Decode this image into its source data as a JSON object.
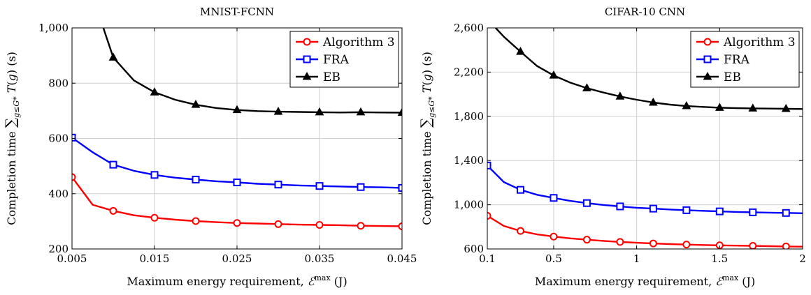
{
  "chart_data": [
    {
      "type": "line",
      "title": "MNIST-FCNN",
      "xlabel": "Maximum energy requirement, ℰ^max (J)",
      "ylabel": "Completion time ∑_{g≤G*} T(g) (s)",
      "xlim": [
        0.005,
        0.045
      ],
      "ylim": [
        200,
        1000
      ],
      "xticks": [
        0.005,
        0.015,
        0.025,
        0.035,
        0.045
      ],
      "xtick_labels": [
        "0.005",
        "0.015",
        "0.025",
        "0.035",
        "0.045"
      ],
      "yticks": [
        200,
        400,
        600,
        800,
        1000
      ],
      "ytick_labels": [
        "200",
        "400",
        "600",
        "800",
        "1,000"
      ],
      "grid": true,
      "legend_position": "top-right",
      "series": [
        {
          "name": "Algorithm 3",
          "color": "#ff0000",
          "marker": "circle",
          "x": [
            0.005,
            0.0075,
            0.01,
            0.0125,
            0.015,
            0.0175,
            0.02,
            0.0225,
            0.025,
            0.0275,
            0.03,
            0.0325,
            0.035,
            0.0375,
            0.04,
            0.0425,
            0.045
          ],
          "y": [
            460,
            360,
            338,
            322,
            313,
            306,
            301,
            297,
            294,
            292,
            290,
            288,
            287,
            286,
            284,
            283,
            282
          ],
          "marker_x": [
            0.005,
            0.01,
            0.015,
            0.02,
            0.025,
            0.03,
            0.035,
            0.04,
            0.045
          ]
        },
        {
          "name": "FRA",
          "color": "#0000ff",
          "marker": "square",
          "x": [
            0.005,
            0.0075,
            0.01,
            0.0125,
            0.015,
            0.0175,
            0.02,
            0.0225,
            0.025,
            0.0275,
            0.03,
            0.0325,
            0.035,
            0.0375,
            0.04,
            0.0425,
            0.045
          ],
          "y": [
            603,
            550,
            505,
            483,
            468,
            458,
            451,
            445,
            441,
            436,
            433,
            430,
            428,
            426,
            424,
            423,
            421
          ],
          "marker_x": [
            0.005,
            0.01,
            0.015,
            0.02,
            0.025,
            0.03,
            0.035,
            0.04,
            0.045
          ]
        },
        {
          "name": "EB",
          "color": "#000000",
          "marker": "triangle",
          "x": [
            0.0088,
            0.01,
            0.0125,
            0.015,
            0.0175,
            0.02,
            0.0225,
            0.025,
            0.0275,
            0.03,
            0.0325,
            0.035,
            0.0375,
            0.04,
            0.0425,
            0.045
          ],
          "y": [
            1000,
            893,
            810,
            767,
            740,
            722,
            710,
            703,
            699,
            697,
            696,
            695,
            694,
            695,
            694,
            693
          ],
          "marker_x": [
            0.01,
            0.015,
            0.02,
            0.025,
            0.03,
            0.035,
            0.04,
            0.045
          ]
        }
      ]
    },
    {
      "type": "line",
      "title": "CIFAR-10 CNN",
      "xlabel": "Maximum energy requirement, ℰ^max (J)",
      "ylabel": "Completion time ∑_{g≤G*} T(g) (s)",
      "xlim": [
        0.1,
        2
      ],
      "ylim": [
        600,
        2600
      ],
      "xticks": [
        0.1,
        0.5,
        1,
        1.5,
        2
      ],
      "xtick_labels": [
        "0.1",
        "0.5",
        "1",
        "1.5",
        "2"
      ],
      "yticks": [
        600,
        1000,
        1400,
        1800,
        2200,
        2600
      ],
      "ytick_labels": [
        "600",
        "1,000",
        "1,400",
        "1,800",
        "2,200",
        "2,600"
      ],
      "grid": true,
      "legend_position": "top-right",
      "series": [
        {
          "name": "Algorithm 3",
          "color": "#ff0000",
          "marker": "circle",
          "x": [
            0.1,
            0.2,
            0.3,
            0.4,
            0.5,
            0.6,
            0.7,
            0.8,
            0.9,
            1.0,
            1.1,
            1.2,
            1.3,
            1.4,
            1.5,
            1.6,
            1.7,
            1.8,
            1.9,
            2.0
          ],
          "y": [
            900,
            808,
            763,
            732,
            712,
            696,
            684,
            673,
            664,
            656,
            650,
            644,
            640,
            636,
            633,
            630,
            628,
            625,
            623,
            621
          ],
          "marker_x": [
            0.1,
            0.3,
            0.5,
            0.7,
            0.9,
            1.1,
            1.3,
            1.5,
            1.7,
            1.9
          ]
        },
        {
          "name": "FRA",
          "color": "#0000ff",
          "marker": "square",
          "x": [
            0.1,
            0.2,
            0.3,
            0.4,
            0.5,
            0.6,
            0.7,
            0.8,
            0.9,
            1.0,
            1.1,
            1.2,
            1.3,
            1.4,
            1.5,
            1.6,
            1.7,
            1.8,
            1.9,
            2.0
          ],
          "y": [
            1355,
            1205,
            1135,
            1090,
            1062,
            1035,
            1015,
            998,
            985,
            973,
            965,
            957,
            951,
            945,
            940,
            935,
            932,
            929,
            926,
            923
          ],
          "marker_x": [
            0.1,
            0.3,
            0.5,
            0.7,
            0.9,
            1.1,
            1.3,
            1.5,
            1.7,
            1.9
          ]
        },
        {
          "name": "EB",
          "color": "#000000",
          "marker": "triangle",
          "x": [
            0.15,
            0.2,
            0.3,
            0.4,
            0.5,
            0.6,
            0.7,
            0.8,
            0.9,
            1.0,
            1.1,
            1.2,
            1.3,
            1.4,
            1.5,
            1.6,
            1.7,
            1.8,
            1.9,
            2.0
          ],
          "y": [
            2600,
            2520,
            2385,
            2255,
            2170,
            2105,
            2055,
            2015,
            1980,
            1950,
            1925,
            1906,
            1893,
            1885,
            1878,
            1874,
            1872,
            1870,
            1868,
            1866
          ],
          "marker_x": [
            0.3,
            0.5,
            0.7,
            0.9,
            1.1,
            1.3,
            1.5,
            1.7,
            1.9
          ]
        }
      ]
    }
  ]
}
